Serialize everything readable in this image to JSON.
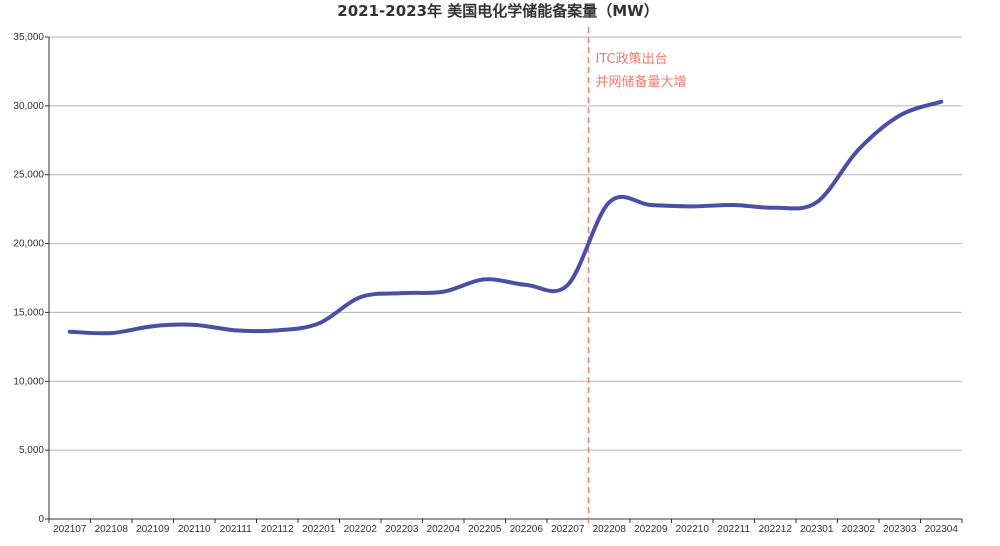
{
  "chart_data": {
    "type": "line",
    "title": "2021-2023年 美国电化学储能备案量（MW）",
    "xlabel": "",
    "ylabel": "",
    "ylim": [
      0,
      35000
    ],
    "yticks": [
      0,
      5000,
      10000,
      15000,
      20000,
      25000,
      30000,
      35000
    ],
    "ytick_labels": [
      "0",
      "5,000",
      "10,000",
      "15,000",
      "20,000",
      "25,000",
      "30,000",
      "35,000"
    ],
    "categories": [
      "202107",
      "202108",
      "202109",
      "202110",
      "202111",
      "202112",
      "202201",
      "202202",
      "202203",
      "202204",
      "202205",
      "202206",
      "202207",
      "202208",
      "202209",
      "202210",
      "202211",
      "202212",
      "202301",
      "202302",
      "202303",
      "202304"
    ],
    "series": [
      {
        "values": [
          13600,
          13500,
          14000,
          14100,
          13700,
          13700,
          14200,
          16100,
          16400,
          16500,
          17400,
          17000,
          17000,
          23000,
          22800,
          22700,
          22800,
          22600,
          23000,
          26800,
          29300,
          30300
        ],
        "color": "#4a4fa6"
      }
    ],
    "grid": true,
    "marker_line": {
      "x": 12.5,
      "color": "#f07b6a",
      "labels": [
        "ITC政策出台",
        "并网储备量大增"
      ]
    }
  }
}
